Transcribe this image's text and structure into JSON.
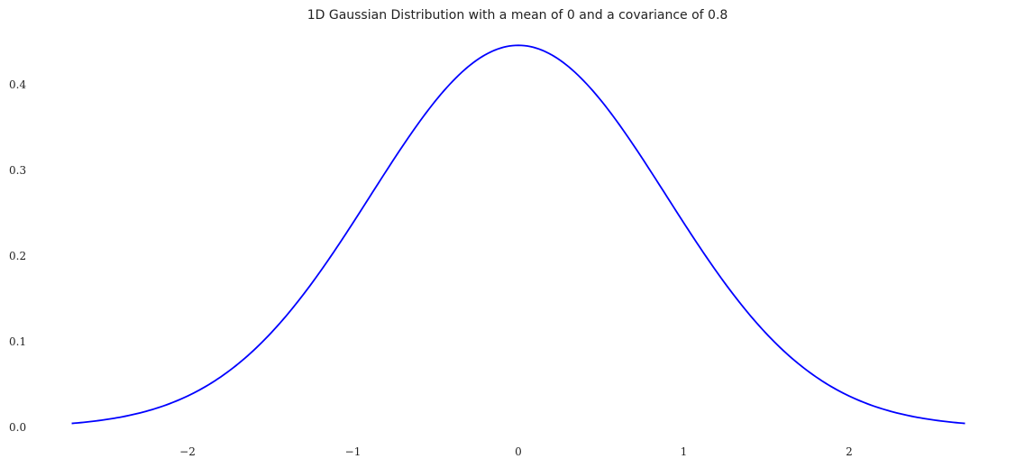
{
  "chart_data": {
    "type": "line",
    "title": "1D Gaussian Distribution with a mean of 0 and a covariance of 0.8",
    "xlabel": "",
    "ylabel": "",
    "mean": 0,
    "covariance": 0.8,
    "xlim": [
      -2.7,
      2.7
    ],
    "ylim": [
      0,
      0.45
    ],
    "x_ticks": [
      {
        "value": -2,
        "label": "−2"
      },
      {
        "value": -1,
        "label": "−1"
      },
      {
        "value": 0,
        "label": "0"
      },
      {
        "value": 1,
        "label": "1"
      },
      {
        "value": 2,
        "label": "2"
      }
    ],
    "y_ticks": [
      {
        "value": 0.0,
        "label": "0.0"
      },
      {
        "value": 0.1,
        "label": "0.1"
      },
      {
        "value": 0.2,
        "label": "0.2"
      },
      {
        "value": 0.3,
        "label": "0.3"
      },
      {
        "value": 0.4,
        "label": "0.4"
      }
    ],
    "grid": false,
    "series": [
      {
        "color": "#0000ff",
        "x": [
          -2.7,
          -2.4,
          -2.1,
          -1.8,
          -1.5,
          -1.2,
          -0.9,
          -0.6,
          -0.3,
          0.0,
          0.3,
          0.6,
          0.9,
          1.2,
          1.5,
          1.8,
          2.1,
          2.4,
          2.7
        ],
        "y": [
          0.0046,
          0.0122,
          0.0284,
          0.0591,
          0.1096,
          0.1815,
          0.268,
          0.3532,
          0.4153,
          0.446,
          0.4153,
          0.3532,
          0.268,
          0.1815,
          0.1096,
          0.0591,
          0.0284,
          0.0122,
          0.0046
        ]
      }
    ]
  }
}
